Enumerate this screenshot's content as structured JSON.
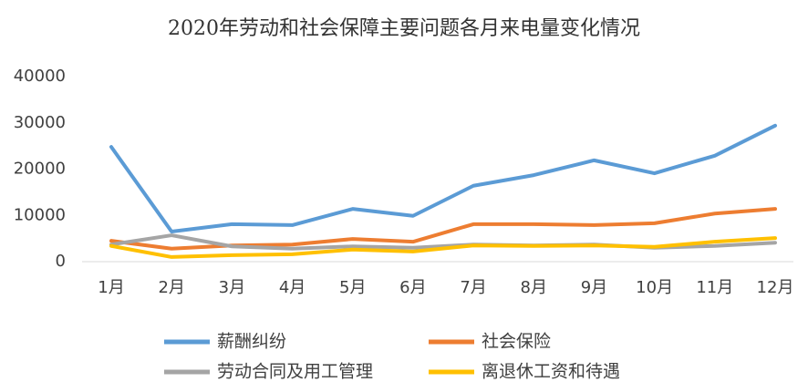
{
  "chart_data": {
    "type": "line",
    "title": "2020年劳动和社会保障主要问题各月来电量变化情况",
    "categories": [
      "1月",
      "2月",
      "3月",
      "4月",
      "5月",
      "6月",
      "7月",
      "8月",
      "9月",
      "10月",
      "11月",
      "12月"
    ],
    "series": [
      {
        "name": "薪酬纠纷",
        "color": "#5b9bd5",
        "values": [
          24800,
          6500,
          8100,
          7900,
          11400,
          9900,
          16400,
          18700,
          21900,
          19100,
          22900,
          29400
        ]
      },
      {
        "name": "社会保险",
        "color": "#ed7d31",
        "values": [
          4500,
          2800,
          3500,
          3700,
          4900,
          4300,
          8100,
          8100,
          7900,
          8300,
          10400,
          11400
        ]
      },
      {
        "name": "劳动合同及用工管理",
        "color": "#a5a5a5",
        "values": [
          3700,
          5700,
          3300,
          2800,
          3300,
          3000,
          3700,
          3500,
          3700,
          3000,
          3400,
          4100
        ]
      },
      {
        "name": "离退休工资和待遇",
        "color": "#ffc000",
        "values": [
          3400,
          1000,
          1400,
          1600,
          2600,
          2200,
          3500,
          3400,
          3500,
          3200,
          4300,
          5100
        ]
      }
    ],
    "ylim": [
      0,
      40000
    ],
    "yticks": [
      0,
      10000,
      20000,
      30000,
      40000
    ],
    "grid": false
  }
}
